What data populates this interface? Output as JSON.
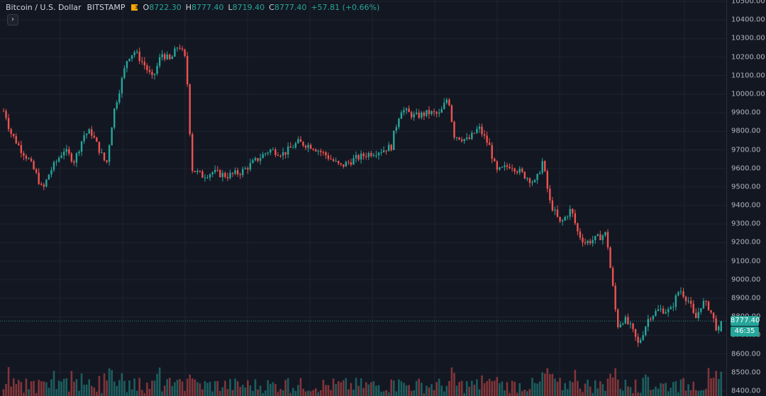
{
  "legend": {
    "symbol": "Bitcoin / U.S. Dollar",
    "exchange": "BITSTAMP",
    "flag_icon": "flag-icon",
    "open_key": "O",
    "open_value": "8722.30",
    "high_key": "H",
    "high_value": "8777.40",
    "low_key": "L",
    "low_value": "8719.40",
    "close_key": "C",
    "close_value": "8777.40",
    "change": "+57.81 (+0.66%)"
  },
  "collapse_button": {
    "glyph": "›",
    "icon": "chevron-right-icon"
  },
  "price_axis": {
    "ticks": [
      "10500.00",
      "10400.00",
      "10300.00",
      "10200.00",
      "10100.00",
      "10000.00",
      "9900.00",
      "9800.00",
      "9700.00",
      "9600.00",
      "9500.00",
      "9400.00",
      "9300.00",
      "9200.00",
      "9100.00",
      "9000.00",
      "8900.00",
      "8800.00",
      "8700.00",
      "8600.00",
      "8500.00",
      "8400.00"
    ],
    "last_price": "8777.40",
    "countdown": "46:35"
  },
  "colors": {
    "up": "#26a69a",
    "down": "#ef5350",
    "background": "#131722",
    "grid": "#1f2330"
  },
  "chart_data": {
    "type": "candlestick",
    "ylim": [
      8400,
      10500
    ],
    "grid": true,
    "candles_description": "BTC/USD hourly candles",
    "series": [
      {
        "name": "price",
        "anchors": [
          [
            0,
            9860
          ],
          [
            6,
            9920
          ],
          [
            14,
            9800
          ],
          [
            22,
            9750
          ],
          [
            30,
            9700
          ],
          [
            40,
            9650
          ],
          [
            52,
            9560
          ],
          [
            60,
            9480
          ],
          [
            70,
            9580
          ],
          [
            80,
            9640
          ],
          [
            90,
            9700
          ],
          [
            105,
            9640
          ],
          [
            118,
            9780
          ],
          [
            128,
            9800
          ],
          [
            140,
            9700
          ],
          [
            150,
            9620
          ],
          [
            160,
            9900
          ],
          [
            170,
            10050
          ],
          [
            180,
            10200
          ],
          [
            190,
            10230
          ],
          [
            205,
            10150
          ],
          [
            215,
            10080
          ],
          [
            228,
            10220
          ],
          [
            240,
            10180
          ],
          [
            252,
            10270
          ],
          [
            262,
            10180
          ],
          [
            266,
            9950
          ],
          [
            270,
            9600
          ],
          [
            285,
            9560
          ],
          [
            300,
            9580
          ],
          [
            320,
            9560
          ],
          [
            340,
            9580
          ],
          [
            360,
            9640
          ],
          [
            380,
            9700
          ],
          [
            400,
            9680
          ],
          [
            420,
            9740
          ],
          [
            440,
            9720
          ],
          [
            460,
            9670
          ],
          [
            480,
            9610
          ],
          [
            500,
            9650
          ],
          [
            520,
            9680
          ],
          [
            540,
            9700
          ],
          [
            553,
            9720
          ],
          [
            555,
            9780
          ],
          [
            565,
            9920
          ],
          [
            585,
            9880
          ],
          [
            605,
            9900
          ],
          [
            620,
            9890
          ],
          [
            632,
            9990
          ],
          [
            640,
            9780
          ],
          [
            660,
            9750
          ],
          [
            675,
            9820
          ],
          [
            690,
            9720
          ],
          [
            700,
            9580
          ],
          [
            720,
            9620
          ],
          [
            740,
            9560
          ],
          [
            755,
            9520
          ],
          [
            765,
            9640
          ],
          [
            775,
            9420
          ],
          [
            790,
            9300
          ],
          [
            805,
            9380
          ],
          [
            815,
            9250
          ],
          [
            825,
            9200
          ],
          [
            840,
            9220
          ],
          [
            855,
            9250
          ],
          [
            860,
            9080
          ],
          [
            866,
            8900
          ],
          [
            870,
            8750
          ],
          [
            880,
            8790
          ],
          [
            890,
            8740
          ],
          [
            900,
            8650
          ],
          [
            915,
            8800
          ],
          [
            930,
            8840
          ],
          [
            945,
            8830
          ],
          [
            958,
            8950
          ],
          [
            972,
            8880
          ],
          [
            980,
            8780
          ],
          [
            990,
            8880
          ],
          [
            1000,
            8850
          ],
          [
            1012,
            8720
          ],
          [
            1020,
            8777
          ]
        ]
      }
    ],
    "last_close": 8777.4
  }
}
